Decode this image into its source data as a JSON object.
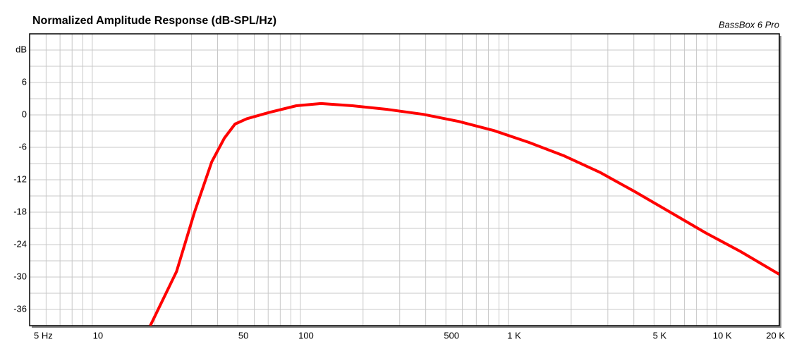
{
  "chart_data": {
    "type": "line",
    "title": "Normalized Amplitude Response (dB-SPL/Hz)",
    "annotation": "BassBox 6 Pro",
    "log_x": true,
    "grid": true,
    "xlim": [
      5,
      20000
    ],
    "ylim": [
      -39,
      15
    ],
    "xticks": [
      {
        "value": 5,
        "label": "5 Hz"
      },
      10,
      50,
      100,
      500,
      {
        "value": 1000,
        "label": "1 K"
      },
      {
        "value": 5000,
        "label": "5 K"
      },
      {
        "value": 10000,
        "label": "10 K"
      },
      {
        "value": 20000,
        "label": "20 K"
      }
    ],
    "xgrid": [
      6,
      7,
      8,
      9,
      20,
      30,
      40,
      60,
      70,
      80,
      90,
      200,
      300,
      400,
      600,
      700,
      800,
      900,
      2000,
      3000,
      4000,
      6000,
      7000,
      8000,
      9000
    ],
    "yticks": [
      {
        "value": 12,
        "label": "dB"
      },
      6,
      0,
      -6,
      -12,
      -18,
      -24,
      -30,
      -36
    ],
    "ygrid": [
      9,
      3,
      -3,
      -9,
      -15,
      -21,
      -27,
      -33
    ],
    "series": [
      {
        "color": "#ff0000",
        "x": [
          19,
          25.4,
          31,
          37.5,
          43.1,
          48.5,
          55.3,
          70,
          95.6,
          125.6,
          178,
          263,
          389,
          575,
          850,
          1256,
          1856,
          2741,
          4047,
          5983,
          8830,
          13060,
          20000
        ],
        "values": [
          -39,
          -29,
          -18,
          -8.7,
          -4.3,
          -1.7,
          -0.7,
          0.4,
          1.7,
          2.1,
          1.7,
          1.0,
          0.1,
          -1.2,
          -2.9,
          -5.1,
          -7.6,
          -10.6,
          -14.2,
          -18,
          -21.8,
          -25.3,
          -29.5
        ]
      }
    ]
  }
}
